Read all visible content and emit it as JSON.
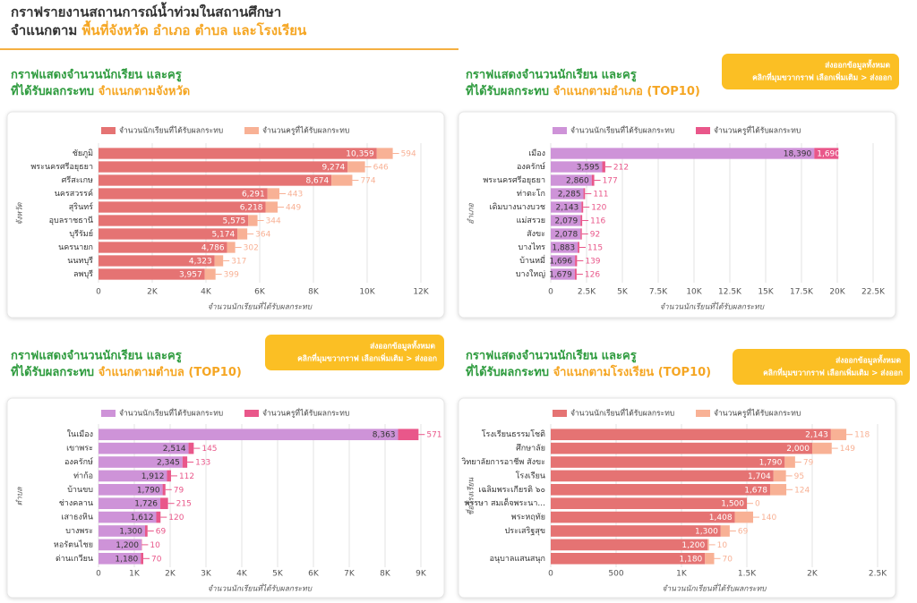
{
  "header": {
    "title": "กราฟรายงานสถานการณ์น้ำท่วมในสถานศึกษา",
    "subtitle_prefix": "จำแนกตาม",
    "subtitle_highlight": "พื้นที่จังหวัด อำเภอ ตำบล และโรงเรียน"
  },
  "chart_data": [
    {
      "type": "bar",
      "orientation": "horizontal",
      "stacked": true,
      "title_line1": "กราฟแสดงจำนวนนักเรียน และครู",
      "title_prefix": "ที่ได้รับผลกระทบ",
      "title_highlight": "จำแนกตามจังหวัด",
      "categories": [
        "ชัยภูมิ",
        "พระนครศรีอยุธยา",
        "ศรีสะเกษ",
        "นครสวรรค์",
        "สุรินทร์",
        "อุบลราชธานี",
        "บุรีรัมย์",
        "นครนายก",
        "นนทบุรี",
        "ลพบุรี"
      ],
      "series": [
        {
          "name": "จำนวนนักเรียนที่ได้รับผลกระทบ",
          "color": "#e57373",
          "values": [
            10359,
            9274,
            8674,
            6291,
            6218,
            5575,
            5174,
            4786,
            4323,
            3957
          ],
          "value_labels": [
            "10,359",
            "9,274",
            "8,674",
            "6,291",
            "6,218",
            "5,575",
            "5,174",
            "4,786",
            "4,323",
            "3,957"
          ]
        },
        {
          "name": "จำนวนครูที่ได้รับผลกระทบ",
          "color": "#f8b195",
          "values": [
            594,
            646,
            774,
            443,
            449,
            344,
            364,
            302,
            317,
            399
          ]
        }
      ],
      "xlim": [
        0,
        12000
      ],
      "xticks": [
        0,
        {
          "value": 2000,
          "label": "2K"
        },
        {
          "value": 4000,
          "label": "4K"
        },
        {
          "value": 6000,
          "label": "6K"
        },
        {
          "value": 8000,
          "label": "8K"
        },
        {
          "value": 10000,
          "label": "10K"
        },
        {
          "value": 12000,
          "label": "12K"
        }
      ],
      "xlabel": "จำนวนนักเรียนที่ได้รับผลกระทบ",
      "ylabel": "จังหวัด",
      "grid": true
    },
    {
      "type": "bar",
      "orientation": "horizontal",
      "stacked": true,
      "title_line1": "กราฟแสดงจำนวนนักเรียน และครู",
      "title_prefix": "ที่ได้รับผลกระทบ",
      "title_highlight": "จำแนกตามอำเภอ (TOP10)",
      "export_button": {
        "line1": "ส่งออกข้อมูลทั้งหมด",
        "line2": "คลิกที่มุมขวากราฟ เลือกเพิ่มเติม > ส่งออก"
      },
      "categories": [
        "เมือง",
        "องครักษ์",
        "พระนครศรีอยุธยา",
        "ท่าตะโก",
        "เดิมบางนางบวช",
        "แม่สรวย",
        "สังขะ",
        "บางไทร",
        "บ้านหมี่",
        "บางใหญ่"
      ],
      "series": [
        {
          "name": "จำนวนนักเรียนที่ได้รับผลกระทบ",
          "color": "#ce93d8",
          "values": [
            18390,
            3595,
            2860,
            2285,
            2143,
            2079,
            2078,
            1883,
            1696,
            1679
          ],
          "value_labels": [
            "18,390",
            "3,595",
            "2,860",
            "2,285",
            "2,143",
            "2,079",
            "2,078",
            "1,883",
            "1,696",
            "1,679"
          ]
        },
        {
          "name": "จำนวนครูที่ได้รับผลกระทบ",
          "color": "#e9578a",
          "values": [
            1690,
            212,
            177,
            111,
            120,
            116,
            92,
            115,
            139,
            126
          ],
          "value_labels": [
            "1,690",
            "212",
            "177",
            "111",
            "120",
            "116",
            "92",
            "115",
            "139",
            "126"
          ]
        }
      ],
      "xlim": [
        0,
        22500
      ],
      "xticks": [
        0,
        {
          "value": 2500,
          "label": "2.5K"
        },
        {
          "value": 5000,
          "label": "5K"
        },
        {
          "value": 7500,
          "label": "7.5K"
        },
        {
          "value": 10000,
          "label": "10K"
        },
        {
          "value": 12500,
          "label": "12.5K"
        },
        {
          "value": 15000,
          "label": "15K"
        },
        {
          "value": 17500,
          "label": "17.5K"
        },
        {
          "value": 20000,
          "label": "20K"
        },
        {
          "value": 22500,
          "label": "22.5K"
        }
      ],
      "xlabel": "จำนวนนักเรียนที่ได้รับผลกระทบ",
      "ylabel": "อำเภอ",
      "grid": true
    },
    {
      "type": "bar",
      "orientation": "horizontal",
      "stacked": true,
      "title_line1": "กราฟแสดงจำนวนนักเรียน และครู",
      "title_prefix": "ที่ได้รับผลกระทบ",
      "title_highlight": "จำแนกตามตำบล (TOP10)",
      "export_button": {
        "line1": "ส่งออกข้อมูลทั้งหมด",
        "line2": "คลิกที่มุมขวากราฟ เลือกเพิ่มเติม > ส่งออก"
      },
      "categories": [
        "ในเมือง",
        "เขาพระ",
        "องครักษ์",
        "ท่าก้อ",
        "บ้านขบ",
        "ช่างคลาน",
        "เสาธงหิน",
        "บางพระ",
        "หอรัตนไชย",
        "ด่านเกวียน"
      ],
      "series": [
        {
          "name": "จำนวนนักเรียนที่ได้รับผลกระทบ",
          "color": "#ce93d8",
          "values": [
            8363,
            2514,
            2345,
            1912,
            1790,
            1726,
            1612,
            1300,
            1200,
            1180
          ],
          "value_labels": [
            "8,363",
            "2,514",
            "2,345",
            "1,912",
            "1,790",
            "1,726",
            "1,612",
            "1,300",
            "1,200",
            "1,180"
          ]
        },
        {
          "name": "จำนวนครูที่ได้รับผลกระทบ",
          "color": "#e9578a",
          "values": [
            571,
            145,
            133,
            112,
            79,
            215,
            120,
            69,
            10,
            70
          ]
        }
      ],
      "xlim": [
        0,
        9000
      ],
      "xticks": [
        0,
        {
          "value": 1000,
          "label": "1K"
        },
        {
          "value": 2000,
          "label": "2K"
        },
        {
          "value": 3000,
          "label": "3K"
        },
        {
          "value": 4000,
          "label": "4K"
        },
        {
          "value": 5000,
          "label": "5K"
        },
        {
          "value": 6000,
          "label": "6K"
        },
        {
          "value": 7000,
          "label": "7K"
        },
        {
          "value": 8000,
          "label": "8K"
        },
        {
          "value": 9000,
          "label": "9K"
        }
      ],
      "xlabel": "จำนวนนักเรียนที่ได้รับผลกระทบ",
      "ylabel": "ตำบล",
      "grid": true
    },
    {
      "type": "bar",
      "orientation": "horizontal",
      "stacked": true,
      "title_line1": "กราฟแสดงจำนวนนักเรียน และครู",
      "title_prefix": "ที่ได้รับผลกระทบ",
      "title_highlight": "จำแนกตามโรงเรียน (TOP10)",
      "export_button": {
        "line1": "ส่งออกข้อมูลทั้งหมด",
        "line2": "คลิกที่มุมขวากราฟ เลือกเพิ่มเติม > ส่งออก"
      },
      "categories": [
        "โรงเรียนธรรมโชติ",
        "ศึกษาลัย",
        "วิทยาลัยการอาชีพ สังขะ",
        "โรงเรียน",
        "เฉลิมพระเกียรติ ๖๐",
        "พรรษา สมเด็จพระนา...",
        "พระหฤทัย",
        "ประเสริฐสุข",
        null,
        "อนุบาลแสนสนุก"
      ],
      "series": [
        {
          "name": "จำนวนนักเรียนที่ได้รับผลกระทบ",
          "color": "#e57373",
          "values": [
            2143,
            2000,
            1790,
            1704,
            1678,
            1500,
            1408,
            1300,
            1200,
            1180
          ],
          "value_labels": [
            "2,143",
            "2,000",
            "1,790",
            "1,704",
            "1,678",
            "1,500",
            "1,408",
            "1,300",
            "1,200",
            "1,180"
          ]
        },
        {
          "name": "จำนวนครูที่ได้รับผลกระทบ",
          "color": "#f8b195",
          "values": [
            118,
            149,
            79,
            95,
            124,
            0,
            140,
            69,
            10,
            70
          ]
        }
      ],
      "xlim": [
        0,
        2500
      ],
      "xticks": [
        0,
        500,
        {
          "value": 1000,
          "label": "1K"
        },
        {
          "value": 1500,
          "label": "1.5K"
        },
        {
          "value": 2000,
          "label": "2K"
        },
        {
          "value": 2500,
          "label": "2.5K"
        }
      ],
      "xlabel": "จำนวนนักเรียนที่ได้รับผลกระทบ",
      "ylabel": "ชื่อโรงเรียน",
      "grid": true
    }
  ]
}
